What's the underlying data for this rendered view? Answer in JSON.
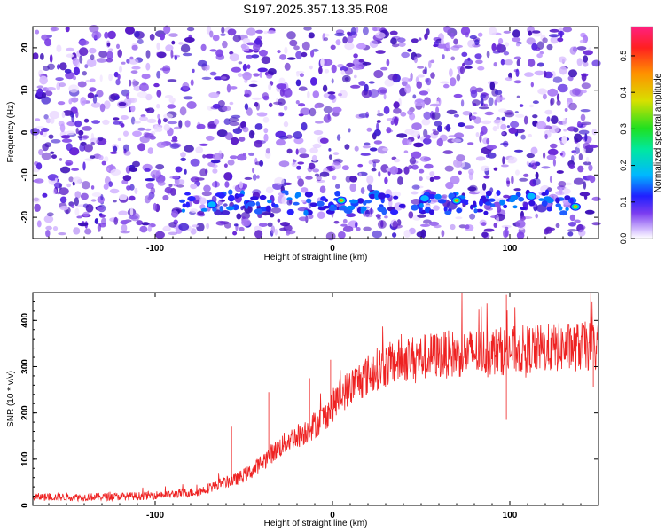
{
  "title": "S197.2025.357.13.35.R08",
  "chart_data": [
    {
      "type": "heatmap",
      "name": "spectrogram",
      "xlabel": "Height of straight line (km)",
      "ylabel": "Frequency (Hz)",
      "xlim": [
        -169,
        150
      ],
      "ylim": [
        -25,
        25
      ],
      "xticks": [
        -100,
        0,
        100
      ],
      "yticks": [
        -20,
        -10,
        0,
        10,
        20
      ],
      "colorbar": {
        "label": "Normalized spectral amplitude",
        "range": [
          0,
          0.58
        ],
        "ticks": [
          0.0,
          0.1,
          0.2,
          0.3,
          0.4,
          0.5
        ]
      },
      "signal_band": {
        "freq_hz": -16.5,
        "x_start_km": -85,
        "x_end_km": 140,
        "peaks": [
          {
            "x": 5,
            "freq": -16,
            "amp": 0.42
          },
          {
            "x": 70,
            "freq": -16,
            "amp": 0.38
          },
          {
            "x": 137,
            "freq": -17.5,
            "amp": 0.4
          },
          {
            "x": -68,
            "freq": -17,
            "amp": 0.18
          },
          {
            "x": 52,
            "freq": -15.5,
            "amp": 0.2
          },
          {
            "x": 112,
            "freq": -15,
            "amp": 0.15
          }
        ]
      }
    },
    {
      "type": "line",
      "name": "snr",
      "xlabel": "Height of straight line (km)",
      "ylabel": "SNR (10 * v/v)",
      "xlim": [
        -169,
        150
      ],
      "ylim": [
        0,
        460
      ],
      "xticks": [
        -100,
        0,
        100
      ],
      "yticks": [
        0,
        100,
        200,
        300,
        400
      ],
      "color": "#ee2222",
      "trend": {
        "x": [
          -169,
          -140,
          -110,
          -90,
          -75,
          -65,
          -55,
          -45,
          -35,
          -25,
          -15,
          -5,
          5,
          15,
          25,
          40,
          60,
          80,
          100,
          120,
          150
        ],
        "y": [
          18,
          18,
          20,
          24,
          30,
          45,
          55,
          75,
          110,
          140,
          160,
          190,
          240,
          270,
          295,
          315,
          325,
          330,
          335,
          340,
          345
        ]
      },
      "spikes": [
        {
          "x": -57,
          "y": 170
        },
        {
          "x": -36,
          "y": 245
        },
        {
          "x": -13,
          "y": 275
        },
        {
          "x": -1,
          "y": 315
        },
        {
          "x": 98,
          "y": 455
        },
        {
          "x": 98,
          "y": 185
        },
        {
          "x": 147,
          "y": 255
        }
      ]
    }
  ]
}
